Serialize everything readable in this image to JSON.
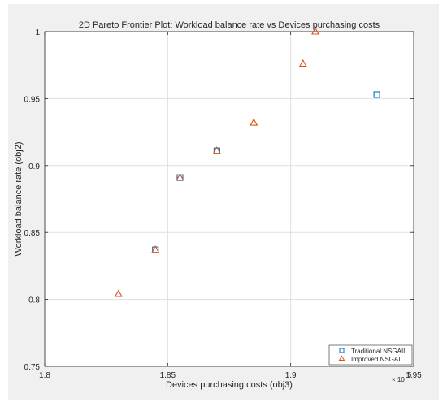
{
  "chart_data": {
    "type": "scatter",
    "title": "2D Pareto Frontier Plot: Workload balance rate vs Devices purchasing costs",
    "xlabel": "Devices purchasing costs (obj3)",
    "ylabel": "Workload balance rate (obj2)",
    "x_exponent_base": "× 10",
    "x_exponent_power": "5",
    "xlim": [
      1.8,
      1.95
    ],
    "ylim": [
      0.75,
      1.0
    ],
    "xticks": [
      1.8,
      1.85,
      1.9,
      1.95
    ],
    "xtick_labels": [
      "1.8",
      "1.85",
      "1.9",
      "1.95"
    ],
    "yticks": [
      0.75,
      0.8,
      0.85,
      0.9,
      0.95,
      1.0
    ],
    "ytick_labels": [
      "0.75",
      "0.8",
      "0.85",
      "0.9",
      "0.95",
      "1"
    ],
    "grid": true,
    "legend_position": "bottom-right",
    "series": [
      {
        "name": "Traditional NSGAII",
        "marker": "square",
        "color": "#0072BD",
        "points": [
          {
            "x": 1.845,
            "y": 0.837
          },
          {
            "x": 1.855,
            "y": 0.891
          },
          {
            "x": 1.87,
            "y": 0.911
          },
          {
            "x": 1.935,
            "y": 0.953
          }
        ]
      },
      {
        "name": "Improved NSGAII",
        "marker": "triangle",
        "color": "#D95319",
        "points": [
          {
            "x": 1.83,
            "y": 0.804
          },
          {
            "x": 1.845,
            "y": 0.837
          },
          {
            "x": 1.855,
            "y": 0.891
          },
          {
            "x": 1.87,
            "y": 0.911
          },
          {
            "x": 1.885,
            "y": 0.932
          },
          {
            "x": 1.905,
            "y": 0.976
          },
          {
            "x": 1.91,
            "y": 1.0
          }
        ]
      }
    ]
  }
}
